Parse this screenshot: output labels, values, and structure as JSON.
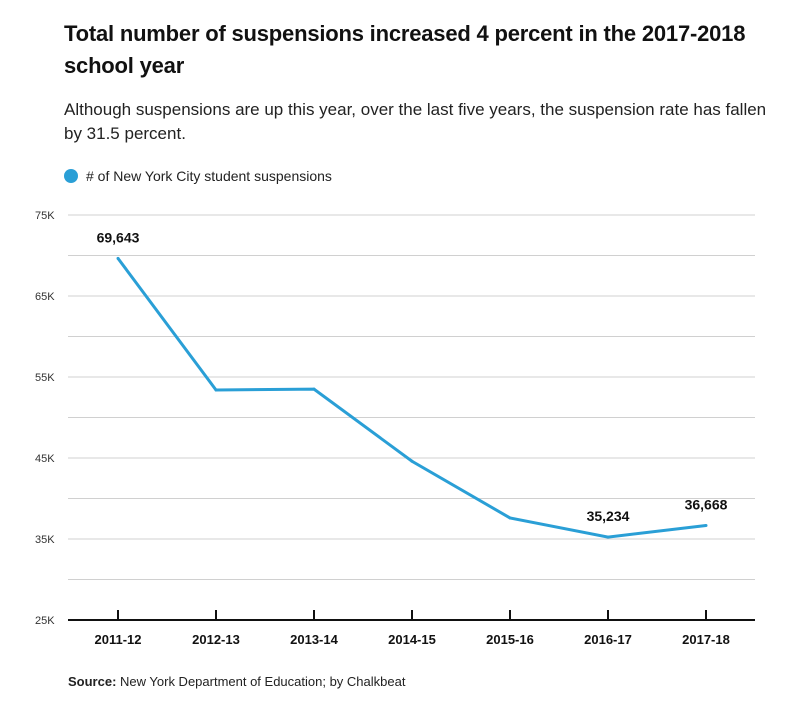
{
  "title": "Total number of suspensions increased 4 percent in the 2017-2018 school year",
  "subtitle": "Although suspensions are up this year, over the last five years, the suspension rate has fallen by 31.5 percent.",
  "source_label": "Source:",
  "source_text": " New York Department of Education; by Chalkbeat",
  "colors": {
    "line": "#2a9fd6",
    "grid": "#d0d0d0",
    "axis": "#111111"
  },
  "chart_data": {
    "type": "line",
    "title": "Total number of suspensions increased 4 percent in the 2017-2018 school year",
    "xlabel": "",
    "ylabel": "",
    "categories": [
      "2011-12",
      "2012-13",
      "2013-14",
      "2014-15",
      "2015-16",
      "2016-17",
      "2017-18"
    ],
    "series": [
      {
        "name": "# of New York City student suspensions",
        "values": [
          69643,
          53400,
          53500,
          44600,
          37600,
          35234,
          36668
        ]
      }
    ],
    "data_labels": [
      {
        "index": 0,
        "text": "69,643"
      },
      {
        "index": 5,
        "text": "35,234"
      },
      {
        "index": 6,
        "text": "36,668"
      }
    ],
    "ylim": [
      25000,
      75000
    ],
    "yticks": [
      25000,
      35000,
      45000,
      55000,
      65000,
      75000
    ],
    "ytick_labels": [
      "25K",
      "35K",
      "45K",
      "55K",
      "65K",
      "75K"
    ],
    "minor_gridlines": [
      30000,
      40000,
      50000,
      60000,
      70000
    ],
    "grid": true,
    "legend": "top-left"
  }
}
